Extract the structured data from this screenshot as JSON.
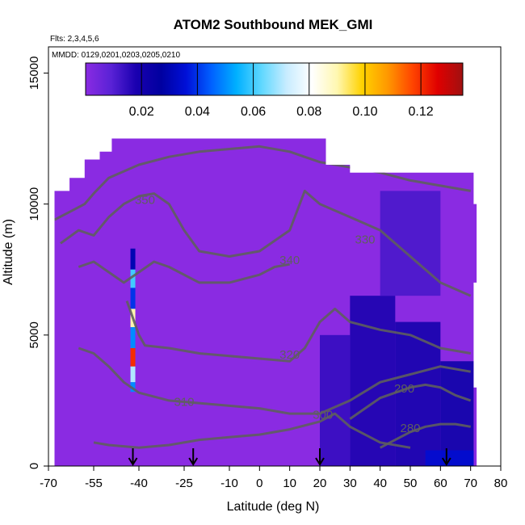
{
  "title": "ATOM2 Southbound MEK_GMI",
  "flights_note": "Flts: 2,3,4,5,6",
  "dates_note": "MMDD: 0129,0201,0203,0205,0210",
  "chart_data": {
    "type": "heatmap",
    "xlabel": "Latitude (deg N)",
    "ylabel": "Altitude (m)",
    "xlim": [
      -70,
      80
    ],
    "ylim": [
      0,
      16000
    ],
    "x_ticks": [
      -70,
      -55,
      -40,
      -25,
      -10,
      0,
      10,
      20,
      30,
      40,
      50,
      60,
      70,
      80
    ],
    "y_ticks": [
      0,
      5000,
      10000,
      15000
    ],
    "colorbar": {
      "range": [
        0,
        0.135
      ],
      "ticks": [
        0.02,
        0.04,
        0.06,
        0.08,
        0.1,
        0.12
      ],
      "tick_labels": [
        "0.02",
        "0.04",
        "0.06",
        "0.08",
        "0.10",
        "0.12"
      ],
      "colors": [
        "#8a2be2",
        "#5a22d6",
        "#1a00b0",
        "#0000a0",
        "#0010d8",
        "#0060ff",
        "#00b0ff",
        "#60d8ff",
        "#c8ecff",
        "#ffffff",
        "#fff7b0",
        "#ffd200",
        "#ff9900",
        "#ff4400",
        "#e00000",
        "#a01010"
      ]
    },
    "domain_color": "#8a2be2",
    "domain_top": [
      {
        "lat": -68,
        "alt": 9000
      },
      {
        "lat": -68,
        "alt": 10500
      },
      {
        "lat": -63,
        "alt": 10500
      },
      {
        "lat": -63,
        "alt": 11000
      },
      {
        "lat": -58,
        "alt": 11000
      },
      {
        "lat": -58,
        "alt": 11700
      },
      {
        "lat": -53,
        "alt": 11700
      },
      {
        "lat": -53,
        "alt": 12000
      },
      {
        "lat": -49,
        "alt": 12000
      },
      {
        "lat": -49,
        "alt": 12500
      },
      {
        "lat": 22,
        "alt": 12500
      },
      {
        "lat": 22,
        "alt": 11500
      },
      {
        "lat": 30,
        "alt": 11500
      },
      {
        "lat": 30,
        "alt": 11200
      },
      {
        "lat": 71,
        "alt": 11200
      },
      {
        "lat": 71,
        "alt": 10000
      },
      {
        "lat": 72,
        "alt": 10000
      },
      {
        "lat": 72,
        "alt": 7000
      },
      {
        "lat": 71,
        "alt": 7000
      },
      {
        "lat": 71,
        "alt": 3000
      },
      {
        "lat": 72,
        "alt": 3000
      },
      {
        "lat": 72,
        "alt": 0
      },
      {
        "lat": -68,
        "alt": 0
      }
    ],
    "enhanced_regions": [
      {
        "lat0": 20,
        "lat1": 30,
        "alt0": 0,
        "alt1": 5000,
        "value": 0.015
      },
      {
        "lat0": 30,
        "lat1": 45,
        "alt0": 0,
        "alt1": 6500,
        "value": 0.02
      },
      {
        "lat0": 45,
        "lat1": 60,
        "alt0": 0,
        "alt1": 5500,
        "value": 0.022
      },
      {
        "lat0": 60,
        "lat1": 71,
        "alt0": 0,
        "alt1": 4000,
        "value": 0.025
      },
      {
        "lat0": 40,
        "lat1": 60,
        "alt0": 6500,
        "alt1": 10500,
        "value": 0.012
      },
      {
        "lat0": 55,
        "lat1": 71,
        "alt0": 0,
        "alt1": 600,
        "value": 0.035
      }
    ],
    "profile_column": {
      "lat": -42,
      "points": [
        {
          "alt": 8300,
          "value": 0.03
        },
        {
          "alt": 7500,
          "value": 0.06
        },
        {
          "alt": 6800,
          "value": 0.04
        },
        {
          "alt": 6000,
          "value": 0.09
        },
        {
          "alt": 5300,
          "value": 0.05
        },
        {
          "alt": 4500,
          "value": 0.12
        },
        {
          "alt": 3800,
          "value": 0.07
        },
        {
          "alt": 3200,
          "value": 0.05
        }
      ]
    },
    "contours": [
      {
        "level": "350",
        "label_lat": -38,
        "label_alt": 10000,
        "points": [
          [
            -68,
            9400
          ],
          [
            -63,
            9700
          ],
          [
            -58,
            10000
          ],
          [
            -55,
            10400
          ],
          [
            -50,
            11000
          ],
          [
            -40,
            11500
          ],
          [
            -30,
            11800
          ],
          [
            -20,
            12000
          ],
          [
            -10,
            12100
          ],
          [
            0,
            12200
          ],
          [
            10,
            12000
          ],
          [
            20,
            11600
          ],
          [
            30,
            11400
          ],
          [
            40,
            11200
          ],
          [
            50,
            10900
          ],
          [
            60,
            10700
          ],
          [
            70,
            10500
          ]
        ]
      },
      {
        "level": "330",
        "label_lat": 35,
        "label_alt": 8500,
        "points": [
          [
            -66,
            8500
          ],
          [
            -60,
            9000
          ],
          [
            -55,
            8800
          ],
          [
            -50,
            9500
          ],
          [
            -45,
            10000
          ],
          [
            -40,
            10300
          ],
          [
            -35,
            10400
          ],
          [
            -30,
            10000
          ],
          [
            -25,
            9000
          ],
          [
            -20,
            8200
          ],
          [
            -10,
            8000
          ],
          [
            0,
            8200
          ],
          [
            10,
            9000
          ],
          [
            15,
            10500
          ],
          [
            20,
            10000
          ],
          [
            30,
            9500
          ],
          [
            40,
            9000
          ],
          [
            50,
            8000
          ],
          [
            60,
            7000
          ],
          [
            70,
            6500
          ]
        ]
      },
      {
        "level": "340",
        "label_lat": 10,
        "label_alt": 7700,
        "points": [
          [
            -60,
            7600
          ],
          [
            -55,
            7800
          ],
          [
            -50,
            7400
          ],
          [
            -45,
            7000
          ],
          [
            -40,
            7400
          ],
          [
            -35,
            7800
          ],
          [
            -30,
            7600
          ],
          [
            -20,
            7000
          ],
          [
            -10,
            7000
          ],
          [
            0,
            7300
          ],
          [
            5,
            7600
          ],
          [
            10,
            7700
          ]
        ]
      },
      {
        "level": "320",
        "label_lat": 10,
        "label_alt": 4100,
        "points": [
          [
            -44,
            6300
          ],
          [
            -40,
            5000
          ],
          [
            -38,
            4600
          ],
          [
            -30,
            4500
          ],
          [
            -20,
            4300
          ],
          [
            -10,
            4200
          ],
          [
            0,
            4100
          ],
          [
            10,
            4000
          ],
          [
            15,
            4500
          ],
          [
            20,
            5500
          ],
          [
            25,
            6000
          ],
          [
            30,
            5500
          ],
          [
            40,
            5200
          ],
          [
            50,
            5000
          ],
          [
            60,
            4500
          ],
          [
            70,
            4300
          ]
        ]
      },
      {
        "level": "310",
        "label_lat": -25,
        "label_alt": 2300,
        "points": [
          [
            -60,
            4500
          ],
          [
            -55,
            4300
          ],
          [
            -50,
            3800
          ],
          [
            -45,
            3200
          ],
          [
            -40,
            2800
          ],
          [
            -30,
            2500
          ],
          [
            -20,
            2400
          ],
          [
            -10,
            2300
          ],
          [
            0,
            2200
          ],
          [
            10,
            2000
          ],
          [
            20,
            2000
          ],
          [
            30,
            2500
          ],
          [
            40,
            3200
          ],
          [
            50,
            3500
          ],
          [
            60,
            3800
          ],
          [
            70,
            3600
          ]
        ]
      },
      {
        "level": "300",
        "label_lat": 21,
        "label_alt": 1800,
        "points": [
          [
            -55,
            900
          ],
          [
            -50,
            800
          ],
          [
            -40,
            700
          ],
          [
            -30,
            800
          ],
          [
            -20,
            1000
          ],
          [
            -10,
            1100
          ],
          [
            0,
            1200
          ],
          [
            10,
            1400
          ],
          [
            20,
            1700
          ],
          [
            25,
            2000
          ],
          [
            30,
            1500
          ],
          [
            40,
            900
          ],
          [
            50,
            700
          ]
        ]
      },
      {
        "level": "290",
        "label_lat": 48,
        "label_alt": 2800,
        "points": [
          [
            30,
            1800
          ],
          [
            35,
            2200
          ],
          [
            40,
            2600
          ],
          [
            45,
            2800
          ],
          [
            50,
            3000
          ],
          [
            55,
            3100
          ],
          [
            60,
            3000
          ],
          [
            65,
            2700
          ],
          [
            70,
            2500
          ]
        ]
      },
      {
        "level": "280",
        "label_lat": 50,
        "label_alt": 1300,
        "points": [
          [
            40,
            700
          ],
          [
            45,
            1000
          ],
          [
            50,
            1300
          ],
          [
            55,
            1500
          ],
          [
            60,
            1600
          ],
          [
            65,
            1600
          ],
          [
            70,
            1500
          ]
        ]
      }
    ],
    "arrows_lat": [
      -42,
      -22,
      20,
      62
    ]
  }
}
